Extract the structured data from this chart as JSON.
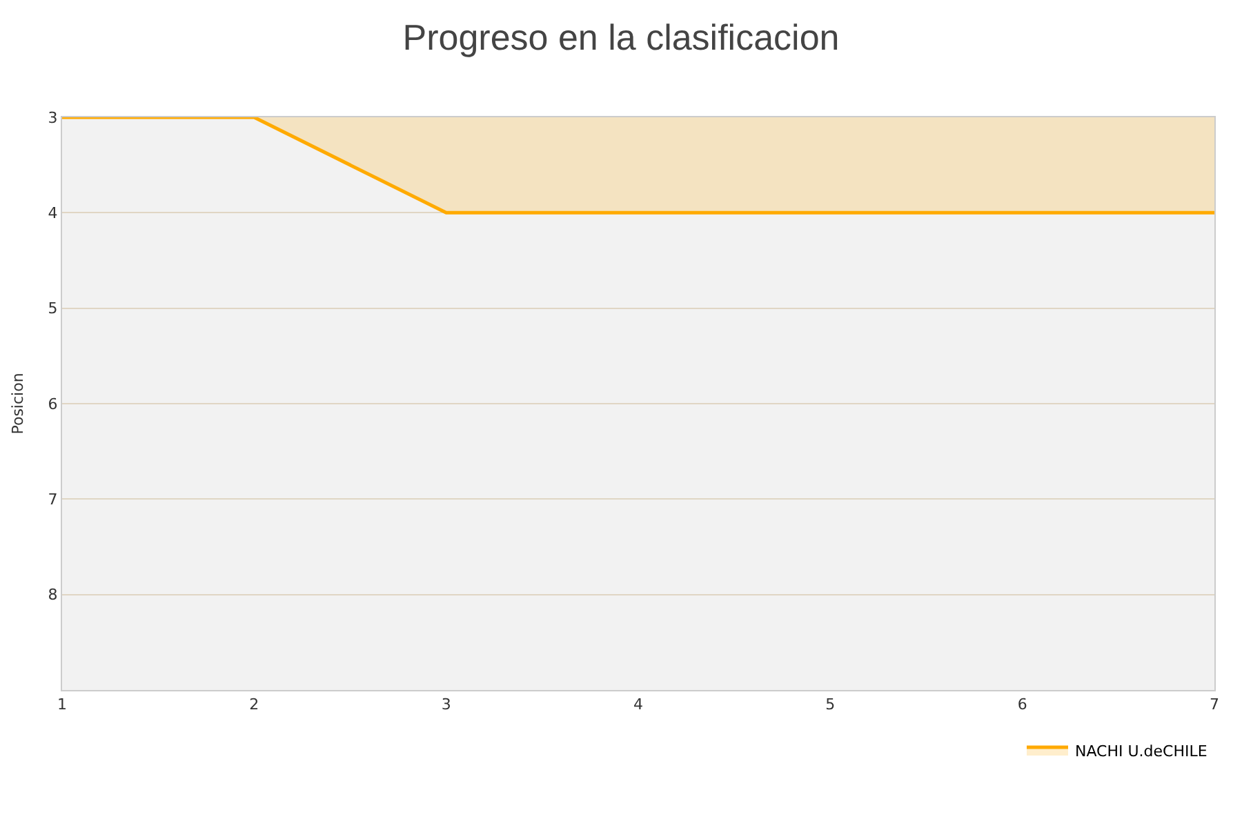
{
  "chart_data": {
    "type": "area",
    "title": "Progreso en la clasificacion",
    "ylabel": "Posicion",
    "x": [
      1,
      2,
      3,
      4,
      5,
      6,
      7
    ],
    "series": [
      {
        "name": "NACHI U.deCHILE",
        "color": "#ffaa00",
        "values": [
          3,
          3,
          4,
          4,
          4,
          4,
          4
        ]
      }
    ],
    "xlim": [
      1,
      7
    ],
    "xticks": [
      1,
      2,
      3,
      4,
      5,
      6,
      7
    ],
    "ylim": [
      9,
      3
    ],
    "yticks": [
      3,
      4,
      5,
      6,
      7,
      8
    ],
    "grid": "y",
    "legend": "bottom right"
  }
}
